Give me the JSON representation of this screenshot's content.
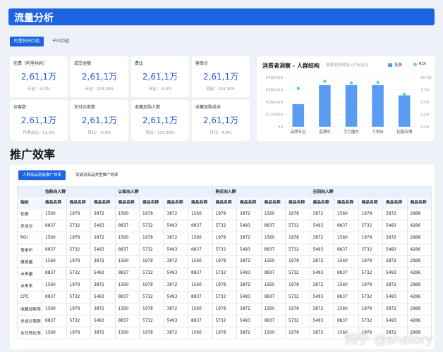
{
  "header": {
    "title": "流量分析"
  },
  "top_tabs": [
    {
      "label": "阿里妈妈口径",
      "active": true
    },
    {
      "label": "千川口径",
      "active": false
    }
  ],
  "metric_cards": [
    {
      "label": "花费（阿里妈妈）",
      "value": "2,61,1万",
      "change": "环比：-0.9%"
    },
    {
      "label": "成交金额",
      "value": "2,61,1万",
      "change": "环比：154.30%"
    },
    {
      "label": "费比",
      "value": "2,61,1万",
      "change": "环比：-0.9%"
    },
    {
      "label": "客单价",
      "value": "2,61,1万",
      "change": "同比：154.30%"
    },
    {
      "label": "访客数",
      "value": "2,61,1万",
      "change": "付费占比：11.2%"
    },
    {
      "label": "支付买家数",
      "value": "2,61,1万",
      "change": "环比：-0.9%"
    },
    {
      "label": "收藏加购人数",
      "value": "2,61,1万",
      "change": "同比：132.30%"
    },
    {
      "label": "收藏加购成本",
      "value": "2,61,1万",
      "change": "环比：8.9%"
    }
  ],
  "chart_panel": {
    "title": "消费者洞察 - 人群结构",
    "subtitle": "按渠道获得投入产出对比",
    "legend_bar": "花费",
    "legend_dot": "ROI"
  },
  "chart_data": {
    "type": "bar",
    "categories": [
      "品牌专区",
      "直通车",
      "引力魔方",
      "万相台",
      "钻展店铺"
    ],
    "series": [
      {
        "name": "花费",
        "type": "bar",
        "values": [
          220000,
          405000,
          405000,
          405000,
          305000
        ]
      },
      {
        "name": "ROI",
        "type": "scatter",
        "values": [
          7.8,
          9.2,
          8.9,
          9.0,
          6.6
        ]
      }
    ],
    "y_left_ticks": [
      "¥480000",
      "¥360000",
      "¥240000",
      "¥120000",
      "¥0"
    ],
    "y_left_range": [
      0,
      480000
    ],
    "y_right_ticks": [
      "10.00",
      "7.50",
      "5.00",
      "2.50",
      "0.00"
    ],
    "y_right_range": [
      0,
      10
    ],
    "grid": true,
    "legend_position": "top-right",
    "colors": {
      "bar": "#5b9cf3",
      "dot": "#56d4c7"
    }
  },
  "section": {
    "title": "推广效率"
  },
  "table_tabs": [
    {
      "label": "人群商品层级推广效率",
      "active": true
    },
    {
      "label": "关键词商品类型推广效率",
      "active": false
    }
  ],
  "table": {
    "group_headers": [
      "拉新向人群",
      "认知向人群",
      "购买向人群",
      "召回向人群"
    ],
    "index_header": "指标",
    "col_header": "商品名称",
    "rows": [
      {
        "name": "花费",
        "cells": [
          "1560",
          "1978",
          "3872",
          "1560",
          "1978",
          "3872",
          "1560",
          "1978",
          "3872",
          "1560",
          "1978",
          "3872",
          "1560",
          "1978",
          "3872",
          "2988"
        ]
      },
      {
        "name": "总成交",
        "cells": [
          "8837",
          "5732",
          "5493",
          "8837",
          "5732",
          "5493",
          "8837",
          "5732",
          "5493",
          "8837",
          "5732",
          "5493",
          "8837",
          "5732",
          "5493",
          "4286"
        ]
      },
      {
        "name": "ROI",
        "cells": [
          "1560",
          "1978",
          "3872",
          "1560",
          "1978",
          "3872",
          "1560",
          "1978",
          "3872",
          "1560",
          "1978",
          "3872",
          "1560",
          "1978",
          "3872",
          "2988"
        ]
      },
      {
        "name": "笔单价",
        "cells": [
          "8837",
          "5732",
          "5493",
          "8837",
          "5732",
          "5493",
          "8837",
          "5732",
          "5493",
          "8837",
          "5732",
          "5493",
          "8837",
          "5732",
          "5493",
          "4286"
        ]
      },
      {
        "name": "展现量",
        "cells": [
          "1560",
          "1978",
          "3872",
          "1560",
          "1978",
          "3872",
          "1560",
          "1978",
          "3872",
          "1560",
          "1978",
          "3872",
          "1560",
          "1978",
          "3872",
          "2988"
        ]
      },
      {
        "name": "点击量",
        "cells": [
          "8837",
          "5732",
          "5493",
          "8837",
          "5732",
          "5493",
          "8837",
          "5732",
          "5493",
          "8837",
          "5732",
          "5493",
          "8837",
          "5732",
          "5493",
          "4286"
        ]
      },
      {
        "name": "点击率",
        "cells": [
          "1560",
          "1978",
          "3872",
          "1560",
          "1978",
          "3872",
          "1560",
          "1978",
          "3872",
          "1560",
          "1978",
          "3872",
          "1560",
          "1978",
          "3872",
          "2988"
        ]
      },
      {
        "name": "CPC",
        "cells": [
          "8837",
          "5732",
          "5493",
          "8837",
          "5732",
          "5493",
          "8837",
          "5732",
          "5493",
          "8837",
          "5732",
          "5493",
          "8837",
          "5732",
          "5493",
          "4286"
        ]
      },
      {
        "name": "收藏加购率",
        "cells": [
          "1560",
          "1978",
          "3872",
          "1560",
          "1978",
          "3872",
          "1560",
          "1978",
          "3872",
          "1560",
          "1978",
          "3872",
          "1560",
          "1978",
          "3872",
          "2988"
        ]
      },
      {
        "name": "总成交笔数",
        "cells": [
          "8837",
          "5732",
          "5493",
          "8837",
          "5732",
          "5493",
          "8837",
          "5732",
          "5493",
          "8837",
          "5732",
          "5493",
          "8837",
          "5732",
          "5493",
          "4286"
        ]
      },
      {
        "name": "支付转化率",
        "cells": [
          "1560",
          "1978",
          "3872",
          "1560",
          "1978",
          "3872",
          "1560",
          "1978",
          "3872",
          "1560",
          "1978",
          "3872",
          "1560",
          "1978",
          "3872",
          "2988"
        ]
      }
    ]
  },
  "watermark": "知乎 @shalory"
}
